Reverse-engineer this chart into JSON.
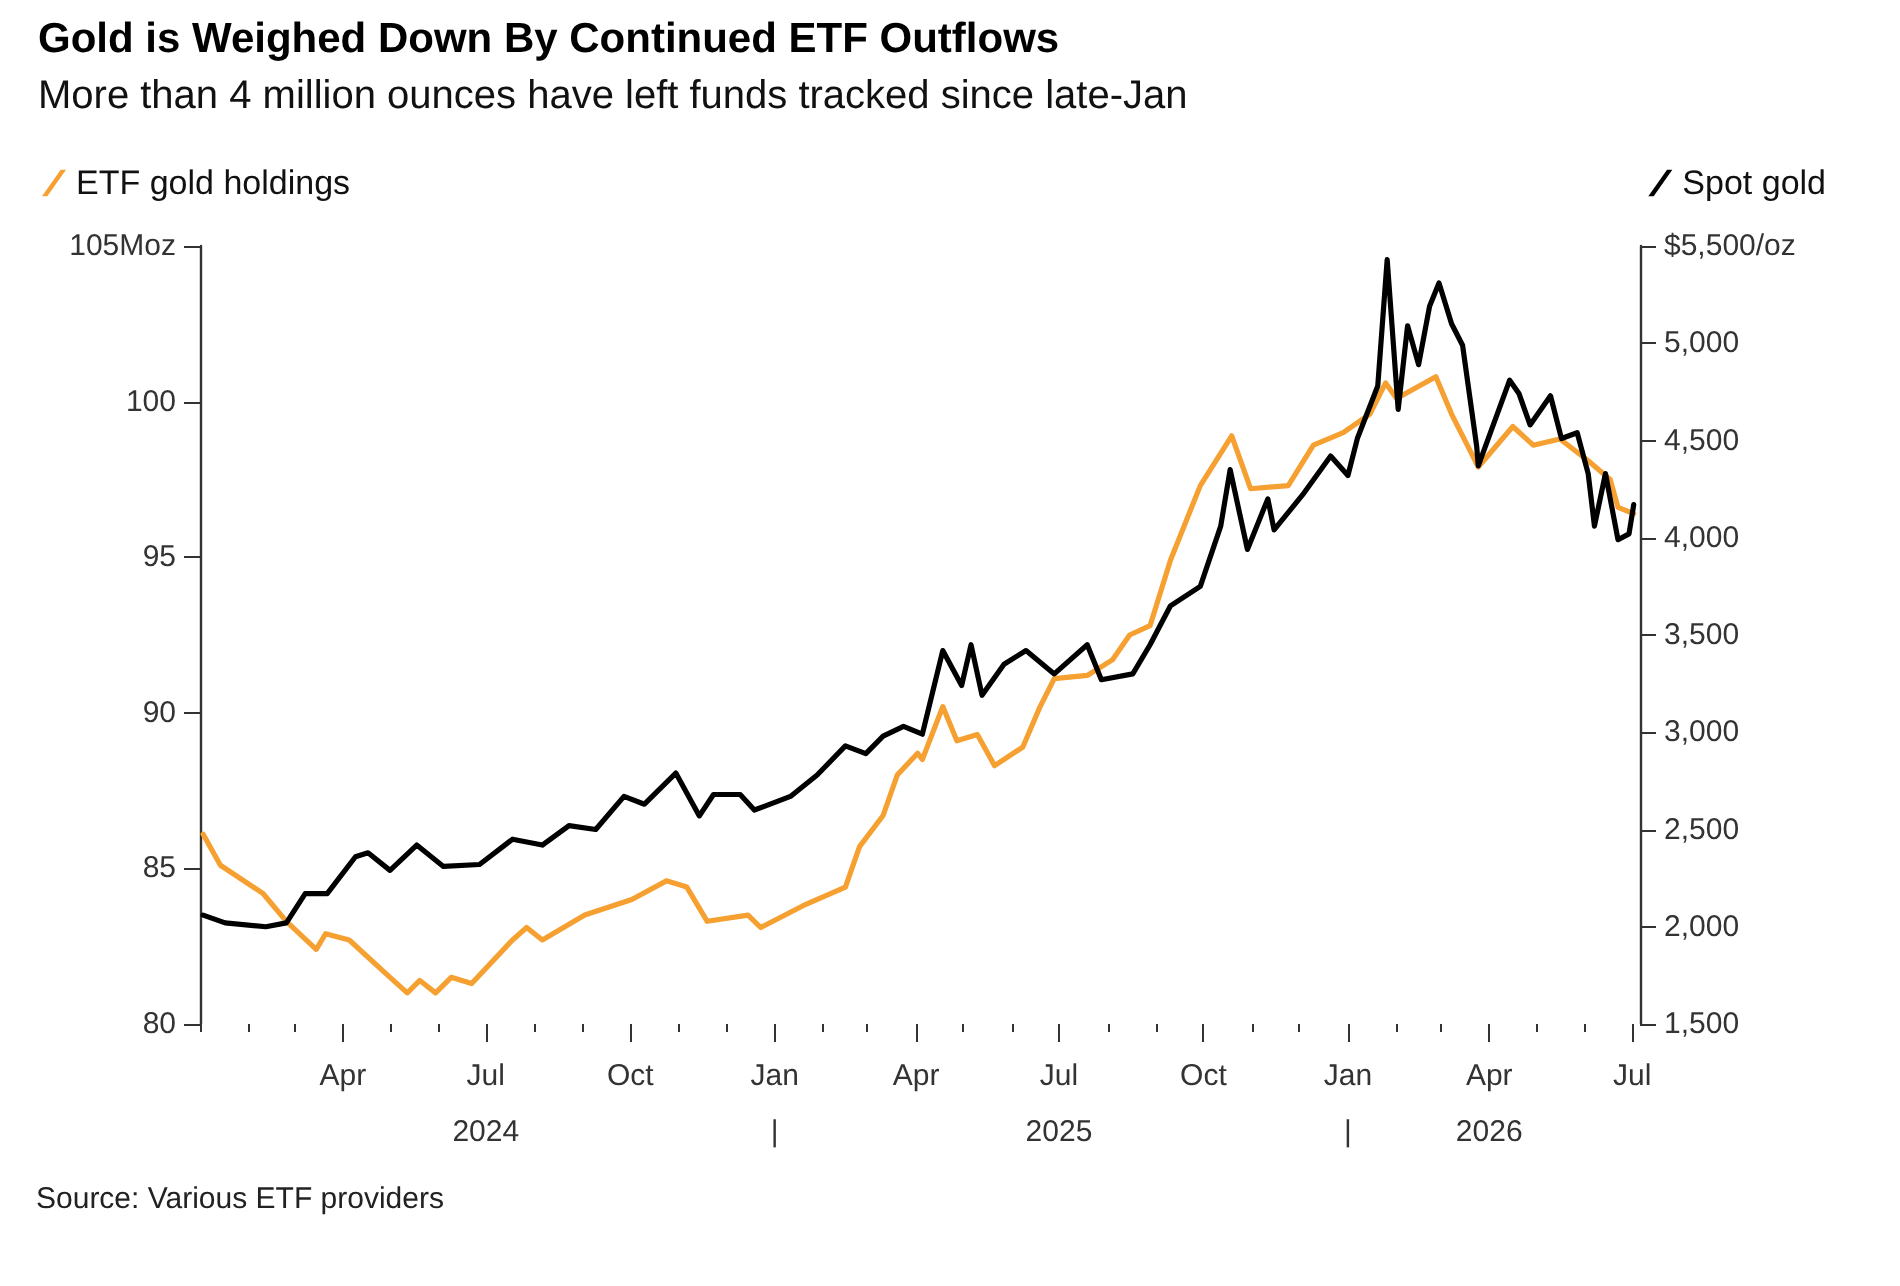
{
  "chart_data": {
    "type": "line",
    "title": "Gold is Weighed Down By Continued ETF Outflows",
    "subtitle": "More than 4 million ounces have left funds tracked since late-Jan",
    "annotations": [
      "Source: Various ETF providers"
    ],
    "legend": "top",
    "marker": "none",
    "line_style": "solid",
    "xlim": [
      "2024-01-01",
      "2026-07-06"
    ],
    "xticks": [
      {
        "value": "2024-01-01",
        "label": null
      },
      {
        "value": "2024-02-01",
        "label": null
      },
      {
        "value": "2024-03-01",
        "label": null
      },
      {
        "value": "2024-04-01",
        "label": "Apr"
      },
      {
        "value": "2024-05-01",
        "label": null
      },
      {
        "value": "2024-06-01",
        "label": null
      },
      {
        "value": "2024-07-01",
        "label": "Jul\n2024"
      },
      {
        "value": "2024-08-01",
        "label": null
      },
      {
        "value": "2024-09-01",
        "label": null
      },
      {
        "value": "2024-10-01",
        "label": "Oct"
      },
      {
        "value": "2024-11-01",
        "label": null
      },
      {
        "value": "2024-12-01",
        "label": null
      },
      {
        "value": "2025-01-01",
        "label": "Jan\n|"
      },
      {
        "value": "2025-02-01",
        "label": null
      },
      {
        "value": "2025-03-01",
        "label": null
      },
      {
        "value": "2025-04-01",
        "label": "Apr"
      },
      {
        "value": "2025-05-01",
        "label": null
      },
      {
        "value": "2025-06-01",
        "label": null
      },
      {
        "value": "2025-07-01",
        "label": "Jul\n2025"
      },
      {
        "value": "2025-08-01",
        "label": null
      },
      {
        "value": "2025-09-01",
        "label": null
      },
      {
        "value": "2025-10-01",
        "label": "Oct"
      },
      {
        "value": "2025-11-01",
        "label": null
      },
      {
        "value": "2025-12-01",
        "label": null
      },
      {
        "value": "2026-01-01",
        "label": "Jan\n|"
      },
      {
        "value": "2026-02-01",
        "label": null
      },
      {
        "value": "2026-03-01",
        "label": null
      },
      {
        "value": "2026-04-01",
        "label": "Apr\n2026"
      },
      {
        "value": "2026-05-01",
        "label": null
      },
      {
        "value": "2026-06-01",
        "label": null
      },
      {
        "value": "2026-07-01",
        "label": "Jul"
      }
    ],
    "ylim": [
      80,
      105
    ],
    "yticks": [
      80,
      85,
      90,
      95,
      100,
      {
        "value": 105,
        "label": "105Moz"
      }
    ],
    "y2lim": [
      1500,
      5500
    ],
    "y2ticks": [
      {
        "value": 1500,
        "label": "1,500"
      },
      {
        "value": 2000,
        "label": "2,000"
      },
      {
        "value": 2500,
        "label": "2,500"
      },
      {
        "value": 3000,
        "label": "3,000"
      },
      {
        "value": 3500,
        "label": "3,500"
      },
      {
        "value": 4000,
        "label": "4,000"
      },
      {
        "value": 4500,
        "label": "4,500"
      },
      {
        "value": 5000,
        "label": "5,000"
      },
      {
        "value": 5500,
        "label": "$5,500/oz"
      }
    ],
    "series": [
      {
        "name": "ETF gold holdings",
        "color": "#f5a030",
        "x": [
          "2024-01-03",
          "2024-01-14",
          "2024-02-10",
          "2024-02-25",
          "2024-03-15",
          "2024-03-21",
          "2024-04-05",
          "2024-05-01",
          "2024-05-12",
          "2024-05-20",
          "2024-05-30",
          "2024-06-09",
          "2024-06-22",
          "2024-07-18",
          "2024-07-27",
          "2024-08-06",
          "2024-09-02",
          "2024-10-02",
          "2024-10-24",
          "2024-11-06",
          "2024-11-19",
          "2024-12-15",
          "2024-12-23",
          "2025-01-19",
          "2025-02-15",
          "2025-02-24",
          "2025-03-11",
          "2025-03-20",
          "2025-04-02",
          "2025-04-05",
          "2025-04-18",
          "2025-04-27",
          "2025-05-10",
          "2025-05-21",
          "2025-06-08",
          "2025-06-19",
          "2025-06-28",
          "2025-07-19",
          "2025-08-04",
          "2025-08-15",
          "2025-08-28",
          "2025-09-10",
          "2025-09-29",
          "2025-10-19",
          "2025-10-31",
          "2025-11-24",
          "2025-12-10",
          "2025-12-29",
          "2026-01-15",
          "2026-01-25",
          "2026-02-01",
          "2026-02-26",
          "2026-03-08",
          "2026-03-25",
          "2026-04-16",
          "2026-04-29",
          "2026-05-16",
          "2026-06-03",
          "2026-06-17",
          "2026-06-22",
          "2026-07-02"
        ],
        "values": [
          86.1,
          85.1,
          84.2,
          83.3,
          82.4,
          82.9,
          82.7,
          81.5,
          81.0,
          81.4,
          81.0,
          81.5,
          81.3,
          82.7,
          83.1,
          82.7,
          83.5,
          84.0,
          84.6,
          84.4,
          83.3,
          83.5,
          83.1,
          83.8,
          84.4,
          85.7,
          86.7,
          88.0,
          88.7,
          88.5,
          90.2,
          89.1,
          89.3,
          88.3,
          88.9,
          90.2,
          91.1,
          91.2,
          91.7,
          92.5,
          92.8,
          94.9,
          97.3,
          98.9,
          97.2,
          97.3,
          98.6,
          99.0,
          99.6,
          100.6,
          100.1,
          100.8,
          99.6,
          97.9,
          99.2,
          98.6,
          98.8,
          98.1,
          97.5,
          96.6,
          96.4
        ]
      },
      {
        "name": "Spot gold",
        "color": "#000000",
        "axis": "y2",
        "x": [
          "2024-01-03",
          "2024-01-17",
          "2024-02-12",
          "2024-02-25",
          "2024-03-08",
          "2024-03-22",
          "2024-04-09",
          "2024-04-17",
          "2024-05-01",
          "2024-05-18",
          "2024-06-04",
          "2024-06-27",
          "2024-07-18",
          "2024-08-06",
          "2024-08-23",
          "2024-09-09",
          "2024-09-27",
          "2024-10-10",
          "2024-10-30",
          "2024-11-14",
          "2024-11-23",
          "2024-12-10",
          "2024-12-19",
          "2025-01-11",
          "2025-01-28",
          "2025-02-15",
          "2025-02-28",
          "2025-03-11",
          "2025-03-24",
          "2025-04-05",
          "2025-04-18",
          "2025-04-30",
          "2025-05-06",
          "2025-05-13",
          "2025-05-27",
          "2025-06-10",
          "2025-06-28",
          "2025-07-19",
          "2025-07-28",
          "2025-08-17",
          "2025-08-28",
          "2025-09-10",
          "2025-09-29",
          "2025-10-12",
          "2025-10-18",
          "2025-10-29",
          "2025-11-11",
          "2025-11-15",
          "2025-12-04",
          "2025-12-21",
          "2026-01-01",
          "2026-01-07",
          "2026-01-20",
          "2026-01-26",
          "2026-02-02",
          "2026-02-08",
          "2026-02-15",
          "2026-02-22",
          "2026-02-28",
          "2026-03-08",
          "2026-03-15",
          "2026-03-24",
          "2026-03-25",
          "2026-04-14",
          "2026-04-20",
          "2026-04-27",
          "2026-05-10",
          "2026-05-17",
          "2026-05-27",
          "2026-06-03",
          "2026-06-07",
          "2026-06-14",
          "2026-06-22",
          "2026-06-29",
          "2026-07-02"
        ],
        "values": [
          2060,
          2020,
          2000,
          2020,
          2170,
          2170,
          2360,
          2380,
          2290,
          2420,
          2310,
          2320,
          2450,
          2420,
          2520,
          2500,
          2670,
          2630,
          2790,
          2570,
          2680,
          2680,
          2600,
          2670,
          2780,
          2930,
          2890,
          2980,
          3030,
          2990,
          3420,
          3240,
          3450,
          3190,
          3350,
          3420,
          3300,
          3450,
          3270,
          3300,
          3450,
          3650,
          3750,
          4060,
          4350,
          3940,
          4200,
          4040,
          4230,
          4420,
          4320,
          4510,
          4780,
          5430,
          4660,
          5090,
          4890,
          5190,
          5310,
          5100,
          4990,
          4470,
          4370,
          4810,
          4740,
          4580,
          4730,
          4510,
          4540,
          4330,
          4060,
          4330,
          3990,
          4020,
          4170
        ]
      }
    ]
  }
}
